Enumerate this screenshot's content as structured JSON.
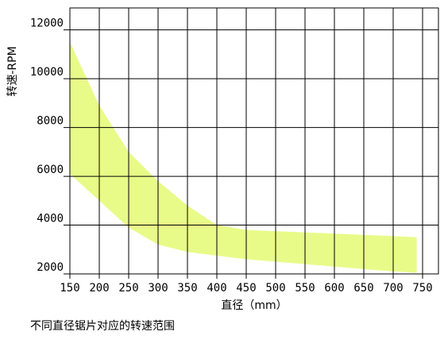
{
  "chart_data": {
    "type": "band",
    "title": "不同直径锯片对应的转速范围",
    "x_label": "直径（mm）",
    "y_label": "转速-RPM",
    "x": [
      150,
      200,
      250,
      300,
      350,
      400,
      450,
      500,
      550,
      600,
      650,
      700,
      740
    ],
    "upper": [
      11500,
      8900,
      7000,
      5800,
      4800,
      4000,
      3800,
      3750,
      3700,
      3650,
      3600,
      3550,
      3500
    ],
    "lower": [
      6100,
      5000,
      3900,
      3200,
      2900,
      2750,
      2600,
      2500,
      2400,
      2300,
      2200,
      2100,
      2050
    ],
    "color": "#e8fb88",
    "xlim": [
      150,
      777
    ],
    "ylim": [
      2000,
      12900
    ],
    "xticks": [
      150,
      200,
      250,
      300,
      350,
      400,
      450,
      500,
      550,
      600,
      650,
      700,
      750
    ],
    "yticks": [
      2000,
      4000,
      6000,
      8000,
      10000,
      12000
    ],
    "grid": true
  }
}
